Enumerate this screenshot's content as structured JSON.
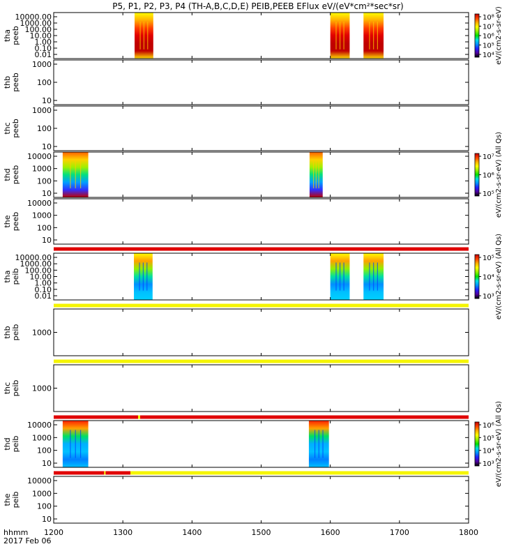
{
  "title": "P5, P1, P2, P3, P4 (TH-A,B,C,D,E) PEIB,PEEB EFlux eV/(eV*cm²*sec*sr)",
  "time_label": "hhmm",
  "date_label": "2017 Feb 06",
  "chart_data": {
    "type": "heatmap",
    "x_ticks": [
      "1200",
      "1300",
      "1400",
      "1500",
      "1600",
      "1700",
      "1800"
    ],
    "xlim": [
      1200,
      1800
    ],
    "panels": [
      {
        "probe": "tha",
        "product": "peeb",
        "yticks": [
          "10000.00",
          "1000.00",
          "100.00",
          "10.00",
          "1.00",
          "0.10",
          "0.01"
        ],
        "ylog": true,
        "data_intervals": [
          [
            1317,
            1344
          ],
          [
            1600,
            1628
          ],
          [
            1648,
            1677
          ]
        ]
      },
      {
        "probe": "thb",
        "product": "peeb",
        "yticks": [
          "1000",
          "100",
          "10"
        ],
        "ylog": true,
        "data_intervals": []
      },
      {
        "probe": "thc",
        "product": "peeb",
        "yticks": [
          "1000",
          "100",
          "10"
        ],
        "ylog": true,
        "data_intervals": []
      },
      {
        "probe": "thd",
        "product": "peeb",
        "yticks": [
          "10000",
          "1000",
          "100",
          "10"
        ],
        "ylog": true,
        "data_intervals": [
          [
            1213,
            1250
          ],
          [
            1570,
            1589
          ]
        ]
      },
      {
        "probe": "the",
        "product": "peeb",
        "yticks": [
          "10000",
          "1000",
          "100",
          "10"
        ],
        "ylog": true,
        "data_intervals": []
      },
      {
        "probe": "tha",
        "product": "peib",
        "yticks": [
          "10000.00",
          "1000.00",
          "100.00",
          "10.00",
          "1.00",
          "0.10",
          "0.01"
        ],
        "ylog": true,
        "data_intervals": [
          [
            1316,
            1343
          ],
          [
            1600,
            1628
          ],
          [
            1648,
            1677
          ]
        ]
      },
      {
        "probe": "thb",
        "product": "peib",
        "yticks": [
          "1000"
        ],
        "ylog": true,
        "data_intervals": []
      },
      {
        "probe": "thc",
        "product": "peib",
        "yticks": [
          "1000"
        ],
        "ylog": true,
        "data_intervals": []
      },
      {
        "probe": "thd",
        "product": "peib",
        "yticks": [
          "10000",
          "1000",
          "100",
          "10"
        ],
        "ylog": true,
        "data_intervals": [
          [
            1213,
            1250
          ],
          [
            1569,
            1598
          ]
        ]
      },
      {
        "probe": "the",
        "product": "peib",
        "yticks": [
          "10000",
          "1000",
          "100",
          "10"
        ],
        "ylog": true,
        "data_intervals": []
      }
    ],
    "quality_bars": [
      {
        "after_panel": 4,
        "segments": [
          {
            "from": 1200,
            "to": 1800,
            "color": "#e00000"
          }
        ]
      },
      {
        "after_panel": 5,
        "segments": [
          {
            "from": 1200,
            "to": 1800,
            "color": "#f5f500"
          }
        ]
      },
      {
        "after_panel": 6,
        "segments": [
          {
            "from": 1200,
            "to": 1800,
            "color": "#f5f500"
          }
        ]
      },
      {
        "after_panel": 7,
        "segments": [
          {
            "from": 1200,
            "to": 1322,
            "color": "#e00000"
          },
          {
            "from": 1322,
            "to": 1325,
            "color": "#f5f500"
          },
          {
            "from": 1325,
            "to": 1800,
            "color": "#e00000"
          }
        ]
      },
      {
        "after_panel": 8,
        "segments": [
          {
            "from": 1200,
            "to": 1273,
            "color": "#e00000"
          },
          {
            "from": 1273,
            "to": 1275,
            "color": "#f5f500"
          },
          {
            "from": 1275,
            "to": 1311,
            "color": "#e00000"
          },
          {
            "from": 1311,
            "to": 1800,
            "color": "#f5f500"
          }
        ]
      }
    ],
    "colorbars": [
      {
        "panel": 0,
        "label": "eV/(cm2-s-sr-eV)",
        "ticks": [
          "10⁸",
          "10⁷",
          "10⁶",
          "10⁵",
          "10⁴"
        ]
      },
      {
        "panel": 3,
        "label": "eV/(cm2-s-sr-eV) (All Qs)",
        "ticks": [
          "10⁷",
          "10⁶",
          "10⁵"
        ]
      },
      {
        "panel": 5,
        "label": "eV/(cm2-s-sr-eV) (All Qs)",
        "ticks": [
          "10⁵",
          "10⁴",
          "10³"
        ]
      },
      {
        "panel": 8,
        "label": "eV/(cm2-s-sr-eV) (All Qs)",
        "ticks": [
          "10⁶",
          "10⁵",
          "10⁴",
          "10³"
        ]
      }
    ],
    "colorbar_colors": [
      "#000000",
      "#5000a0",
      "#2020ff",
      "#0090ff",
      "#00e0e0",
      "#00e000",
      "#90f000",
      "#ffff00",
      "#ffb000",
      "#ff4000",
      "#c00000"
    ]
  }
}
